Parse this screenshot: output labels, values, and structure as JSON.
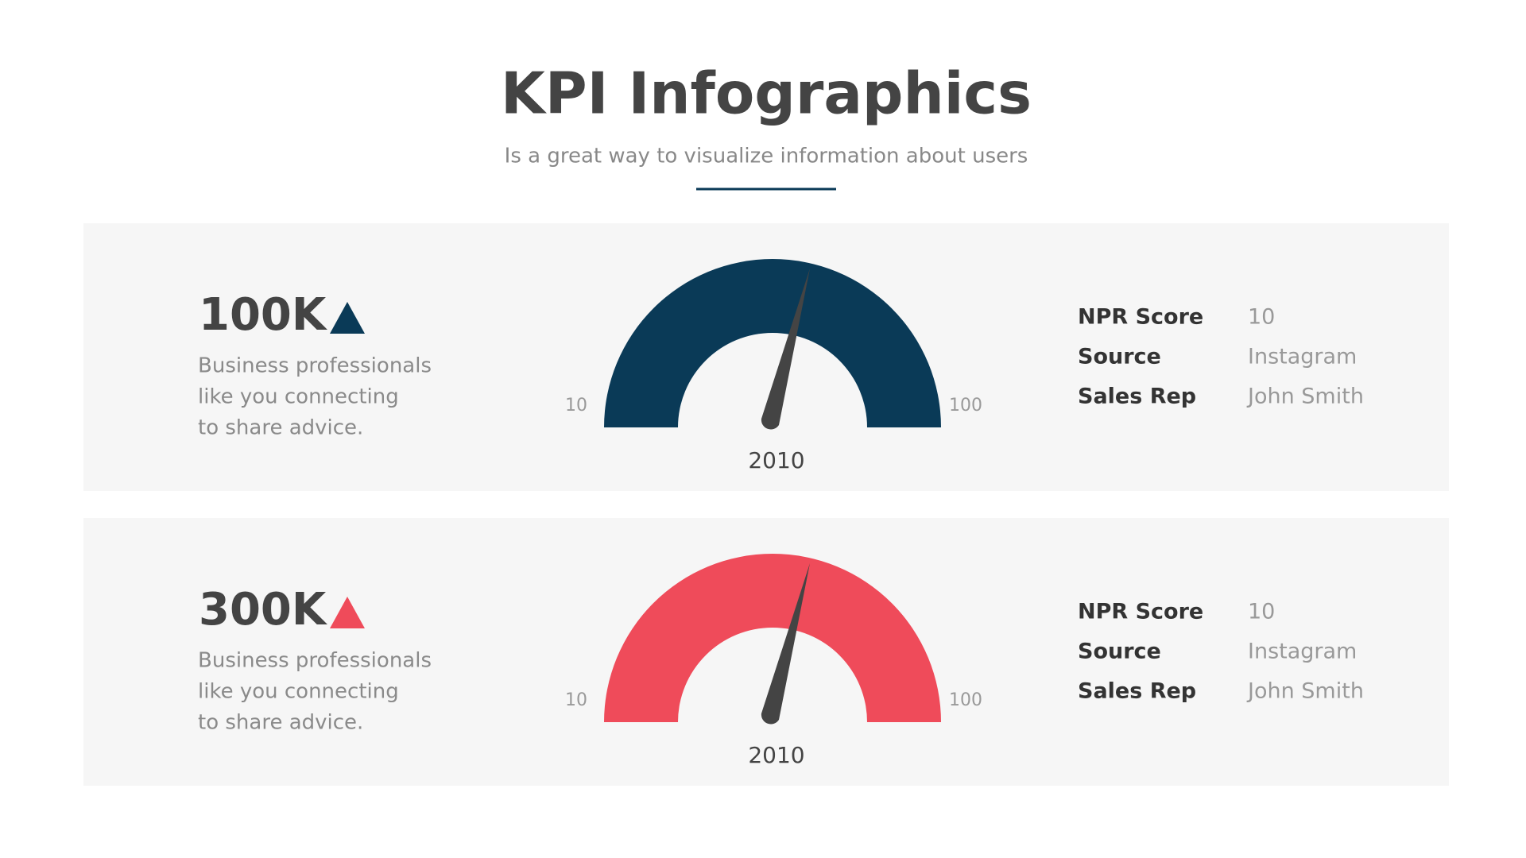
{
  "header": {
    "title": "KPI Infographics",
    "subtitle": "Is a great way to visualize information about users"
  },
  "panels": [
    {
      "kpi": "100K",
      "description": [
        "Business professionals",
        "like you connecting",
        "to share advice."
      ],
      "gauge": {
        "min_label": "10",
        "max_label": "100",
        "caption": "2010"
      },
      "details": [
        [
          "NPR Score",
          "10"
        ],
        [
          "Source",
          "Instagram"
        ],
        [
          "Sales Rep",
          "John Smith"
        ]
      ]
    },
    {
      "kpi": "300K",
      "description": [
        "Business professionals",
        "like you connecting",
        "to share advice."
      ],
      "gauge": {
        "min_label": "10",
        "max_label": "100",
        "caption": "2010"
      },
      "details": [
        [
          "NPR Score",
          "10"
        ],
        [
          "Source",
          "Instagram"
        ],
        [
          "Sales Rep",
          "John Smith"
        ]
      ]
    }
  ]
}
